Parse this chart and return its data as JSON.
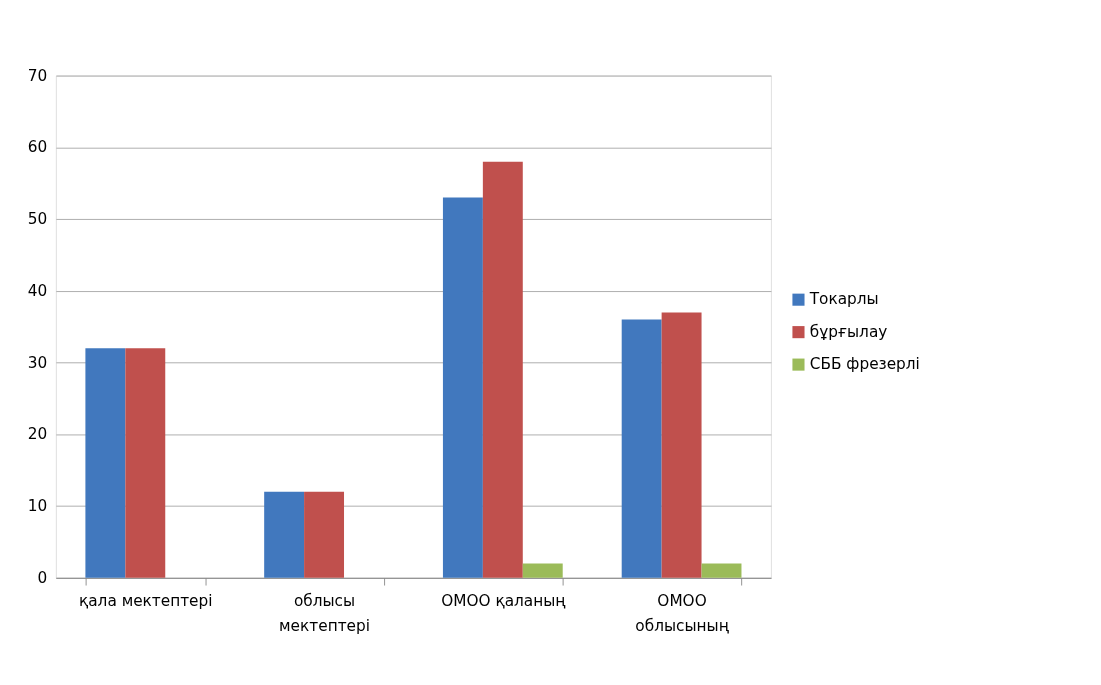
{
  "chart_data": {
    "type": "bar",
    "categories": [
      "қала мектептері",
      "облысы\nмектептері",
      "ОМОО қаланың",
      "ОМОО\nоблысының"
    ],
    "series": [
      {
        "name": "Токарлы",
        "color": "#4178be",
        "values": [
          32,
          12,
          53,
          36
        ]
      },
      {
        "name": "бұрғылау",
        "color": "#c0504d",
        "values": [
          32,
          12,
          58,
          37
        ]
      },
      {
        "name": "СББ фрезерлі",
        "color": "#9bbb59",
        "values": [
          0,
          0,
          2,
          2
        ]
      }
    ],
    "ylim": [
      0,
      70
    ],
    "yticks": [
      0,
      10,
      20,
      30,
      40,
      50,
      60,
      70
    ],
    "grid": "y",
    "legend": "right"
  }
}
